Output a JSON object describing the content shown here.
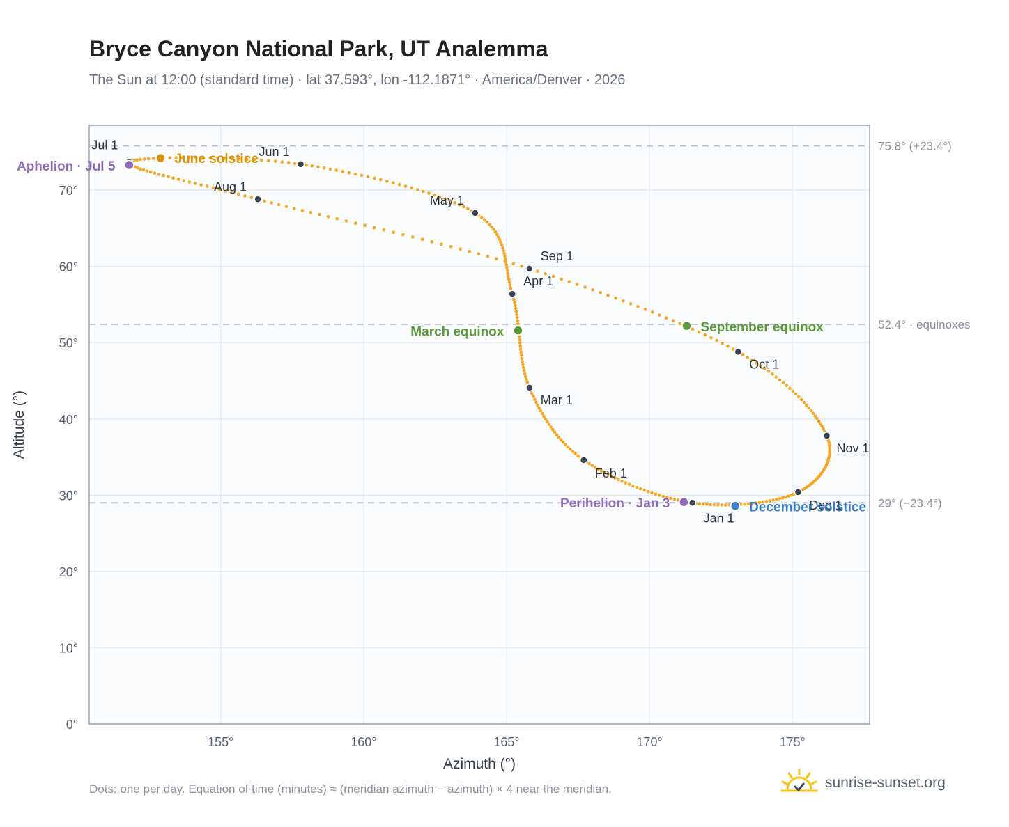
{
  "title": "Bryce Canyon National Park, UT Analemma",
  "subtitle": "The Sun at 12:00 (standard time) · lat 37.593°, lon -112.1871° · America/Denver · 2026",
  "footnote": "Dots: one per day. Equation of time (minutes) ≈ (meridian azimuth − azimuth) × 4 near the meridian.",
  "brand": {
    "text": "sunrise-sunset.org",
    "icon": "sun-logo-icon"
  },
  "colors": {
    "curve": "#f5a623",
    "month_dot": "#374151",
    "solstice_june": "#d4920a",
    "solstice_december": "#3b7dc4",
    "equinox": "#5a9a3a",
    "apsis": "#8e6ab8",
    "plot_bg": "#fafcfe",
    "grid": "#e5e9ef",
    "frame": "#9aa4b1",
    "ref_line": "#b8c1cc"
  },
  "chart_data": {
    "type": "scatter",
    "xlabel": "Azimuth (°)",
    "ylabel": "Altitude (°)",
    "xlim": [
      150.4,
      177.7
    ],
    "ylim": [
      0,
      78.5
    ],
    "x_ticks": [
      155,
      160,
      165,
      170,
      175
    ],
    "x_tick_labels": [
      "155°",
      "160°",
      "165°",
      "170°",
      "175°"
    ],
    "y_ticks": [
      0,
      10,
      20,
      30,
      40,
      50,
      60,
      70
    ],
    "y_tick_labels": [
      "0°",
      "10°",
      "20°",
      "30°",
      "40°",
      "50°",
      "60°",
      "70°"
    ],
    "grid": true,
    "reference_lines": [
      {
        "y": 75.8,
        "label": "75.8° (+23.4°)"
      },
      {
        "y": 52.4,
        "label": "52.4° · equinoxes"
      },
      {
        "y": 29.0,
        "label": "29° (−23.4°)"
      }
    ],
    "month_starts": [
      {
        "label": "Jan 1",
        "az": 171.5,
        "alt": 29.0
      },
      {
        "label": "Feb 1",
        "az": 167.7,
        "alt": 34.6
      },
      {
        "label": "Mar 1",
        "az": 165.8,
        "alt": 44.1
      },
      {
        "label": "Apr 1",
        "az": 165.2,
        "alt": 56.4
      },
      {
        "label": "May 1",
        "az": 163.9,
        "alt": 67.0
      },
      {
        "label": "Jun 1",
        "az": 157.8,
        "alt": 73.4
      },
      {
        "label": "Jul 1",
        "az": 151.8,
        "alt": 73.7
      },
      {
        "label": "Aug 1",
        "az": 156.3,
        "alt": 68.8
      },
      {
        "label": "Sep 1",
        "az": 165.8,
        "alt": 59.7
      },
      {
        "label": "Oct 1",
        "az": 173.1,
        "alt": 48.8
      },
      {
        "label": "Nov 1",
        "az": 176.2,
        "alt": 37.8
      },
      {
        "label": "Dec 1",
        "az": 175.2,
        "alt": 30.4
      }
    ],
    "events": [
      {
        "label": "June solstice",
        "az": 152.9,
        "alt": 74.2,
        "kind": "solstice_june"
      },
      {
        "label": "December solstice",
        "az": 173.0,
        "alt": 28.6,
        "kind": "solstice_december"
      },
      {
        "label": "March equinox",
        "az": 165.4,
        "alt": 51.6,
        "kind": "equinox"
      },
      {
        "label": "September equinox",
        "az": 171.3,
        "alt": 52.2,
        "kind": "equinox"
      },
      {
        "label": "Aphelion · Jul 5",
        "az": 151.8,
        "alt": 73.3,
        "kind": "apsis"
      },
      {
        "label": "Perihelion · Jan 3",
        "az": 171.2,
        "alt": 29.1,
        "kind": "apsis"
      }
    ]
  }
}
